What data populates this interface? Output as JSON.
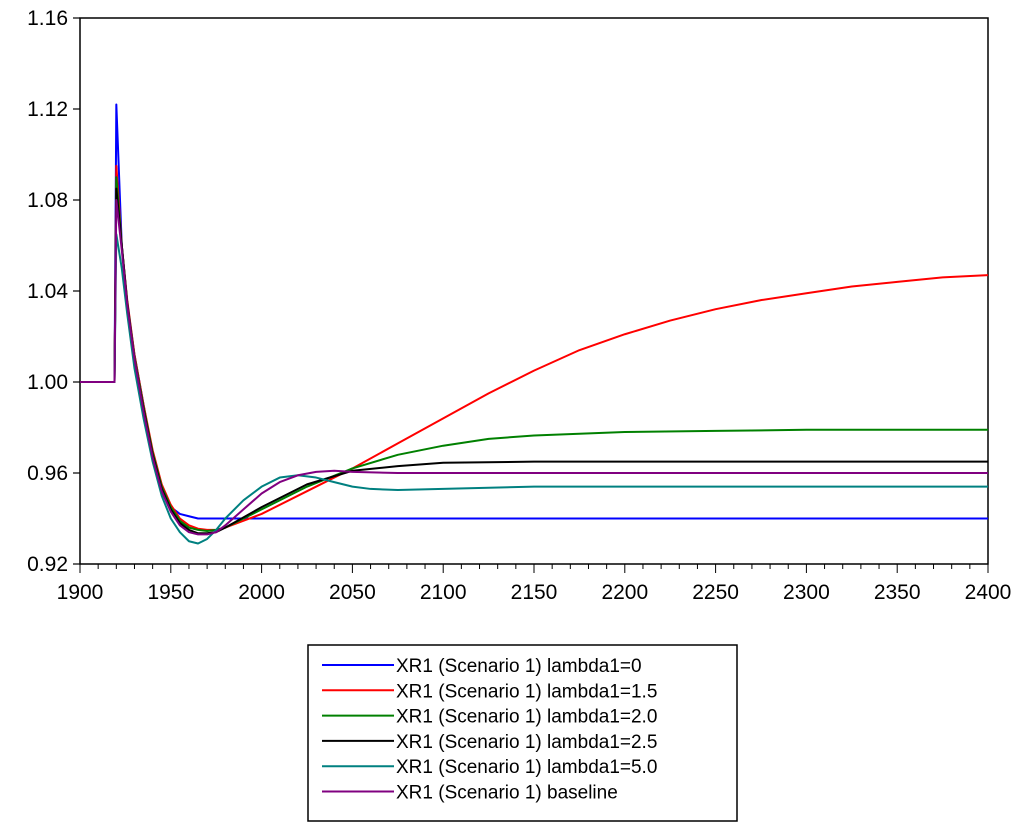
{
  "chart_data": {
    "type": "line",
    "title": "",
    "xlabel": "",
    "ylabel": "",
    "xlim": [
      1900,
      2400
    ],
    "ylim": [
      0.92,
      1.16
    ],
    "x_ticks": [
      1900,
      1950,
      2000,
      2050,
      2100,
      2150,
      2200,
      2250,
      2300,
      2350,
      2400
    ],
    "x_tick_labels": [
      "1900",
      "1950",
      "2000",
      "2050",
      "2100",
      "2150",
      "2200",
      "2250",
      "2300",
      "2350",
      "2400"
    ],
    "y_ticks": [
      0.92,
      0.96,
      1.0,
      1.04,
      1.08,
      1.12,
      1.16
    ],
    "y_tick_labels": [
      "0.92",
      "0.96",
      "1.00",
      "1.04",
      "1.08",
      "1.12",
      "1.16"
    ],
    "x_minor_step": 10,
    "grid": false,
    "legend_position": "bottom-center",
    "series": [
      {
        "name": "XR1 (Scenario 1) lambda1=0",
        "color": "#0000ff",
        "points": [
          [
            1900,
            1.0
          ],
          [
            1918,
            1.0
          ],
          [
            1919,
            1.0
          ],
          [
            1920,
            1.122
          ],
          [
            1923,
            1.06
          ],
          [
            1926,
            1.035
          ],
          [
            1930,
            1.012
          ],
          [
            1935,
            0.99
          ],
          [
            1940,
            0.968
          ],
          [
            1945,
            0.953
          ],
          [
            1950,
            0.945
          ],
          [
            1955,
            0.942
          ],
          [
            1960,
            0.941
          ],
          [
            1965,
            0.94
          ],
          [
            1975,
            0.94
          ],
          [
            2000,
            0.94
          ],
          [
            2400,
            0.94
          ]
        ]
      },
      {
        "name": "XR1 (Scenario 1) lambda1=1.5",
        "color": "#ff0000",
        "points": [
          [
            1900,
            1.0
          ],
          [
            1918,
            1.0
          ],
          [
            1919,
            1.0
          ],
          [
            1920,
            1.095
          ],
          [
            1923,
            1.06
          ],
          [
            1926,
            1.036
          ],
          [
            1930,
            1.012
          ],
          [
            1935,
            0.99
          ],
          [
            1940,
            0.97
          ],
          [
            1945,
            0.955
          ],
          [
            1950,
            0.946
          ],
          [
            1955,
            0.94
          ],
          [
            1960,
            0.937
          ],
          [
            1965,
            0.9355
          ],
          [
            1970,
            0.935
          ],
          [
            1975,
            0.935
          ],
          [
            1980,
            0.936
          ],
          [
            2000,
            0.942
          ],
          [
            2025,
            0.952
          ],
          [
            2050,
            0.962
          ],
          [
            2075,
            0.973
          ],
          [
            2100,
            0.984
          ],
          [
            2125,
            0.995
          ],
          [
            2150,
            1.005
          ],
          [
            2175,
            1.014
          ],
          [
            2200,
            1.021
          ],
          [
            2225,
            1.027
          ],
          [
            2250,
            1.032
          ],
          [
            2275,
            1.036
          ],
          [
            2300,
            1.039
          ],
          [
            2325,
            1.042
          ],
          [
            2350,
            1.044
          ],
          [
            2375,
            1.046
          ],
          [
            2400,
            1.047
          ]
        ]
      },
      {
        "name": "XR1 (Scenario 1) lambda1=2.0",
        "color": "#008000",
        "points": [
          [
            1900,
            1.0
          ],
          [
            1918,
            1.0
          ],
          [
            1919,
            1.0
          ],
          [
            1920,
            1.09
          ],
          [
            1923,
            1.06
          ],
          [
            1926,
            1.035
          ],
          [
            1930,
            1.011
          ],
          [
            1935,
            0.989
          ],
          [
            1940,
            0.969
          ],
          [
            1945,
            0.954
          ],
          [
            1950,
            0.945
          ],
          [
            1955,
            0.939
          ],
          [
            1960,
            0.936
          ],
          [
            1965,
            0.935
          ],
          [
            1970,
            0.9345
          ],
          [
            1975,
            0.935
          ],
          [
            1980,
            0.936
          ],
          [
            2000,
            0.944
          ],
          [
            2025,
            0.954
          ],
          [
            2050,
            0.962
          ],
          [
            2075,
            0.968
          ],
          [
            2100,
            0.972
          ],
          [
            2125,
            0.975
          ],
          [
            2150,
            0.9765
          ],
          [
            2200,
            0.978
          ],
          [
            2250,
            0.9785
          ],
          [
            2300,
            0.979
          ],
          [
            2400,
            0.979
          ]
        ]
      },
      {
        "name": "XR1 (Scenario 1) lambda1=2.5",
        "color": "#000000",
        "points": [
          [
            1900,
            1.0
          ],
          [
            1918,
            1.0
          ],
          [
            1919,
            1.0
          ],
          [
            1920,
            1.085
          ],
          [
            1923,
            1.06
          ],
          [
            1926,
            1.035
          ],
          [
            1930,
            1.01
          ],
          [
            1935,
            0.988
          ],
          [
            1940,
            0.968
          ],
          [
            1945,
            0.953
          ],
          [
            1950,
            0.944
          ],
          [
            1955,
            0.938
          ],
          [
            1960,
            0.935
          ],
          [
            1965,
            0.9335
          ],
          [
            1970,
            0.9335
          ],
          [
            1975,
            0.934
          ],
          [
            1980,
            0.936
          ],
          [
            2000,
            0.945
          ],
          [
            2025,
            0.955
          ],
          [
            2050,
            0.961
          ],
          [
            2075,
            0.963
          ],
          [
            2100,
            0.9645
          ],
          [
            2150,
            0.965
          ],
          [
            2400,
            0.965
          ]
        ]
      },
      {
        "name": "XR1 (Scenario 1) lambda1=5.0",
        "color": "#008080",
        "points": [
          [
            1900,
            1.0
          ],
          [
            1918,
            1.0
          ],
          [
            1919,
            1.0
          ],
          [
            1920,
            1.065
          ],
          [
            1923,
            1.05
          ],
          [
            1926,
            1.03
          ],
          [
            1930,
            1.006
          ],
          [
            1935,
            0.984
          ],
          [
            1940,
            0.965
          ],
          [
            1945,
            0.95
          ],
          [
            1950,
            0.94
          ],
          [
            1955,
            0.934
          ],
          [
            1960,
            0.93
          ],
          [
            1965,
            0.929
          ],
          [
            1970,
            0.931
          ],
          [
            1975,
            0.935
          ],
          [
            1980,
            0.94
          ],
          [
            1990,
            0.948
          ],
          [
            2000,
            0.954
          ],
          [
            2010,
            0.958
          ],
          [
            2020,
            0.959
          ],
          [
            2030,
            0.958
          ],
          [
            2040,
            0.956
          ],
          [
            2050,
            0.954
          ],
          [
            2060,
            0.953
          ],
          [
            2075,
            0.9525
          ],
          [
            2100,
            0.953
          ],
          [
            2150,
            0.954
          ],
          [
            2400,
            0.954
          ]
        ]
      },
      {
        "name": "XR1 (Scenario 1) baseline",
        "color": "#800080",
        "points": [
          [
            1900,
            1.0
          ],
          [
            1918,
            1.0
          ],
          [
            1919,
            1.0
          ],
          [
            1920,
            1.08
          ],
          [
            1923,
            1.058
          ],
          [
            1926,
            1.034
          ],
          [
            1930,
            1.01
          ],
          [
            1935,
            0.987
          ],
          [
            1940,
            0.967
          ],
          [
            1945,
            0.952
          ],
          [
            1950,
            0.943
          ],
          [
            1955,
            0.937
          ],
          [
            1960,
            0.934
          ],
          [
            1965,
            0.933
          ],
          [
            1970,
            0.933
          ],
          [
            1975,
            0.934
          ],
          [
            1980,
            0.937
          ],
          [
            1990,
            0.944
          ],
          [
            2000,
            0.951
          ],
          [
            2010,
            0.956
          ],
          [
            2020,
            0.959
          ],
          [
            2030,
            0.9605
          ],
          [
            2040,
            0.961
          ],
          [
            2050,
            0.9605
          ],
          [
            2075,
            0.96
          ],
          [
            2100,
            0.96
          ],
          [
            2400,
            0.96
          ]
        ]
      }
    ]
  }
}
